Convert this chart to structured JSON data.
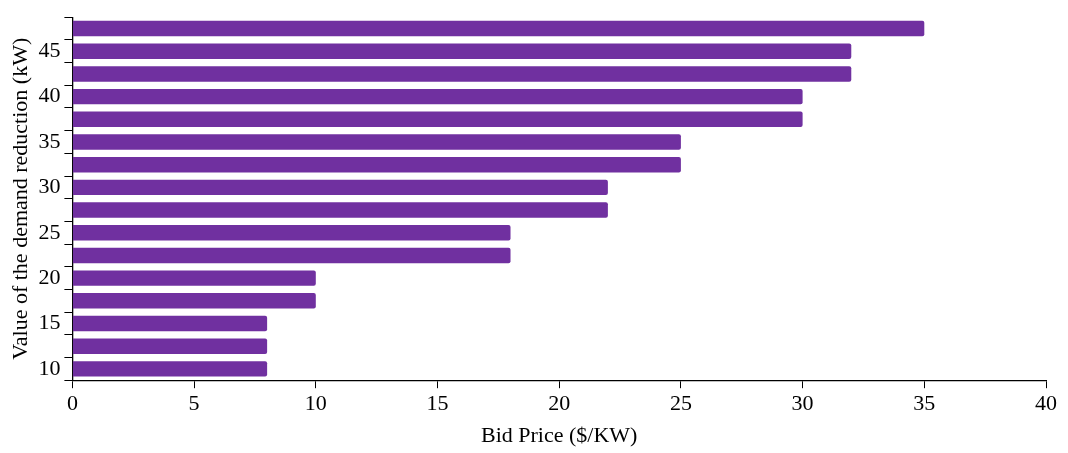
{
  "chart_data": {
    "type": "bar",
    "orientation": "horizontal",
    "xlabel": "Bid Price ($/KW)",
    "ylabel": "Value of the demand reduction (kW)",
    "categories": [
      null,
      "45",
      null,
      "40",
      null,
      "35",
      null,
      "30",
      null,
      "25",
      null,
      "20",
      null,
      "15",
      null,
      "10"
    ],
    "values": [
      35,
      32,
      32,
      30,
      30,
      25,
      25,
      22,
      22,
      18,
      18,
      10,
      10,
      8,
      8,
      8
    ],
    "color": "#7030a0",
    "xlim": [
      0,
      40
    ],
    "xticks": [
      0,
      5,
      10,
      15,
      20,
      25,
      30,
      35,
      40
    ],
    "grid": false,
    "legend": false
  }
}
